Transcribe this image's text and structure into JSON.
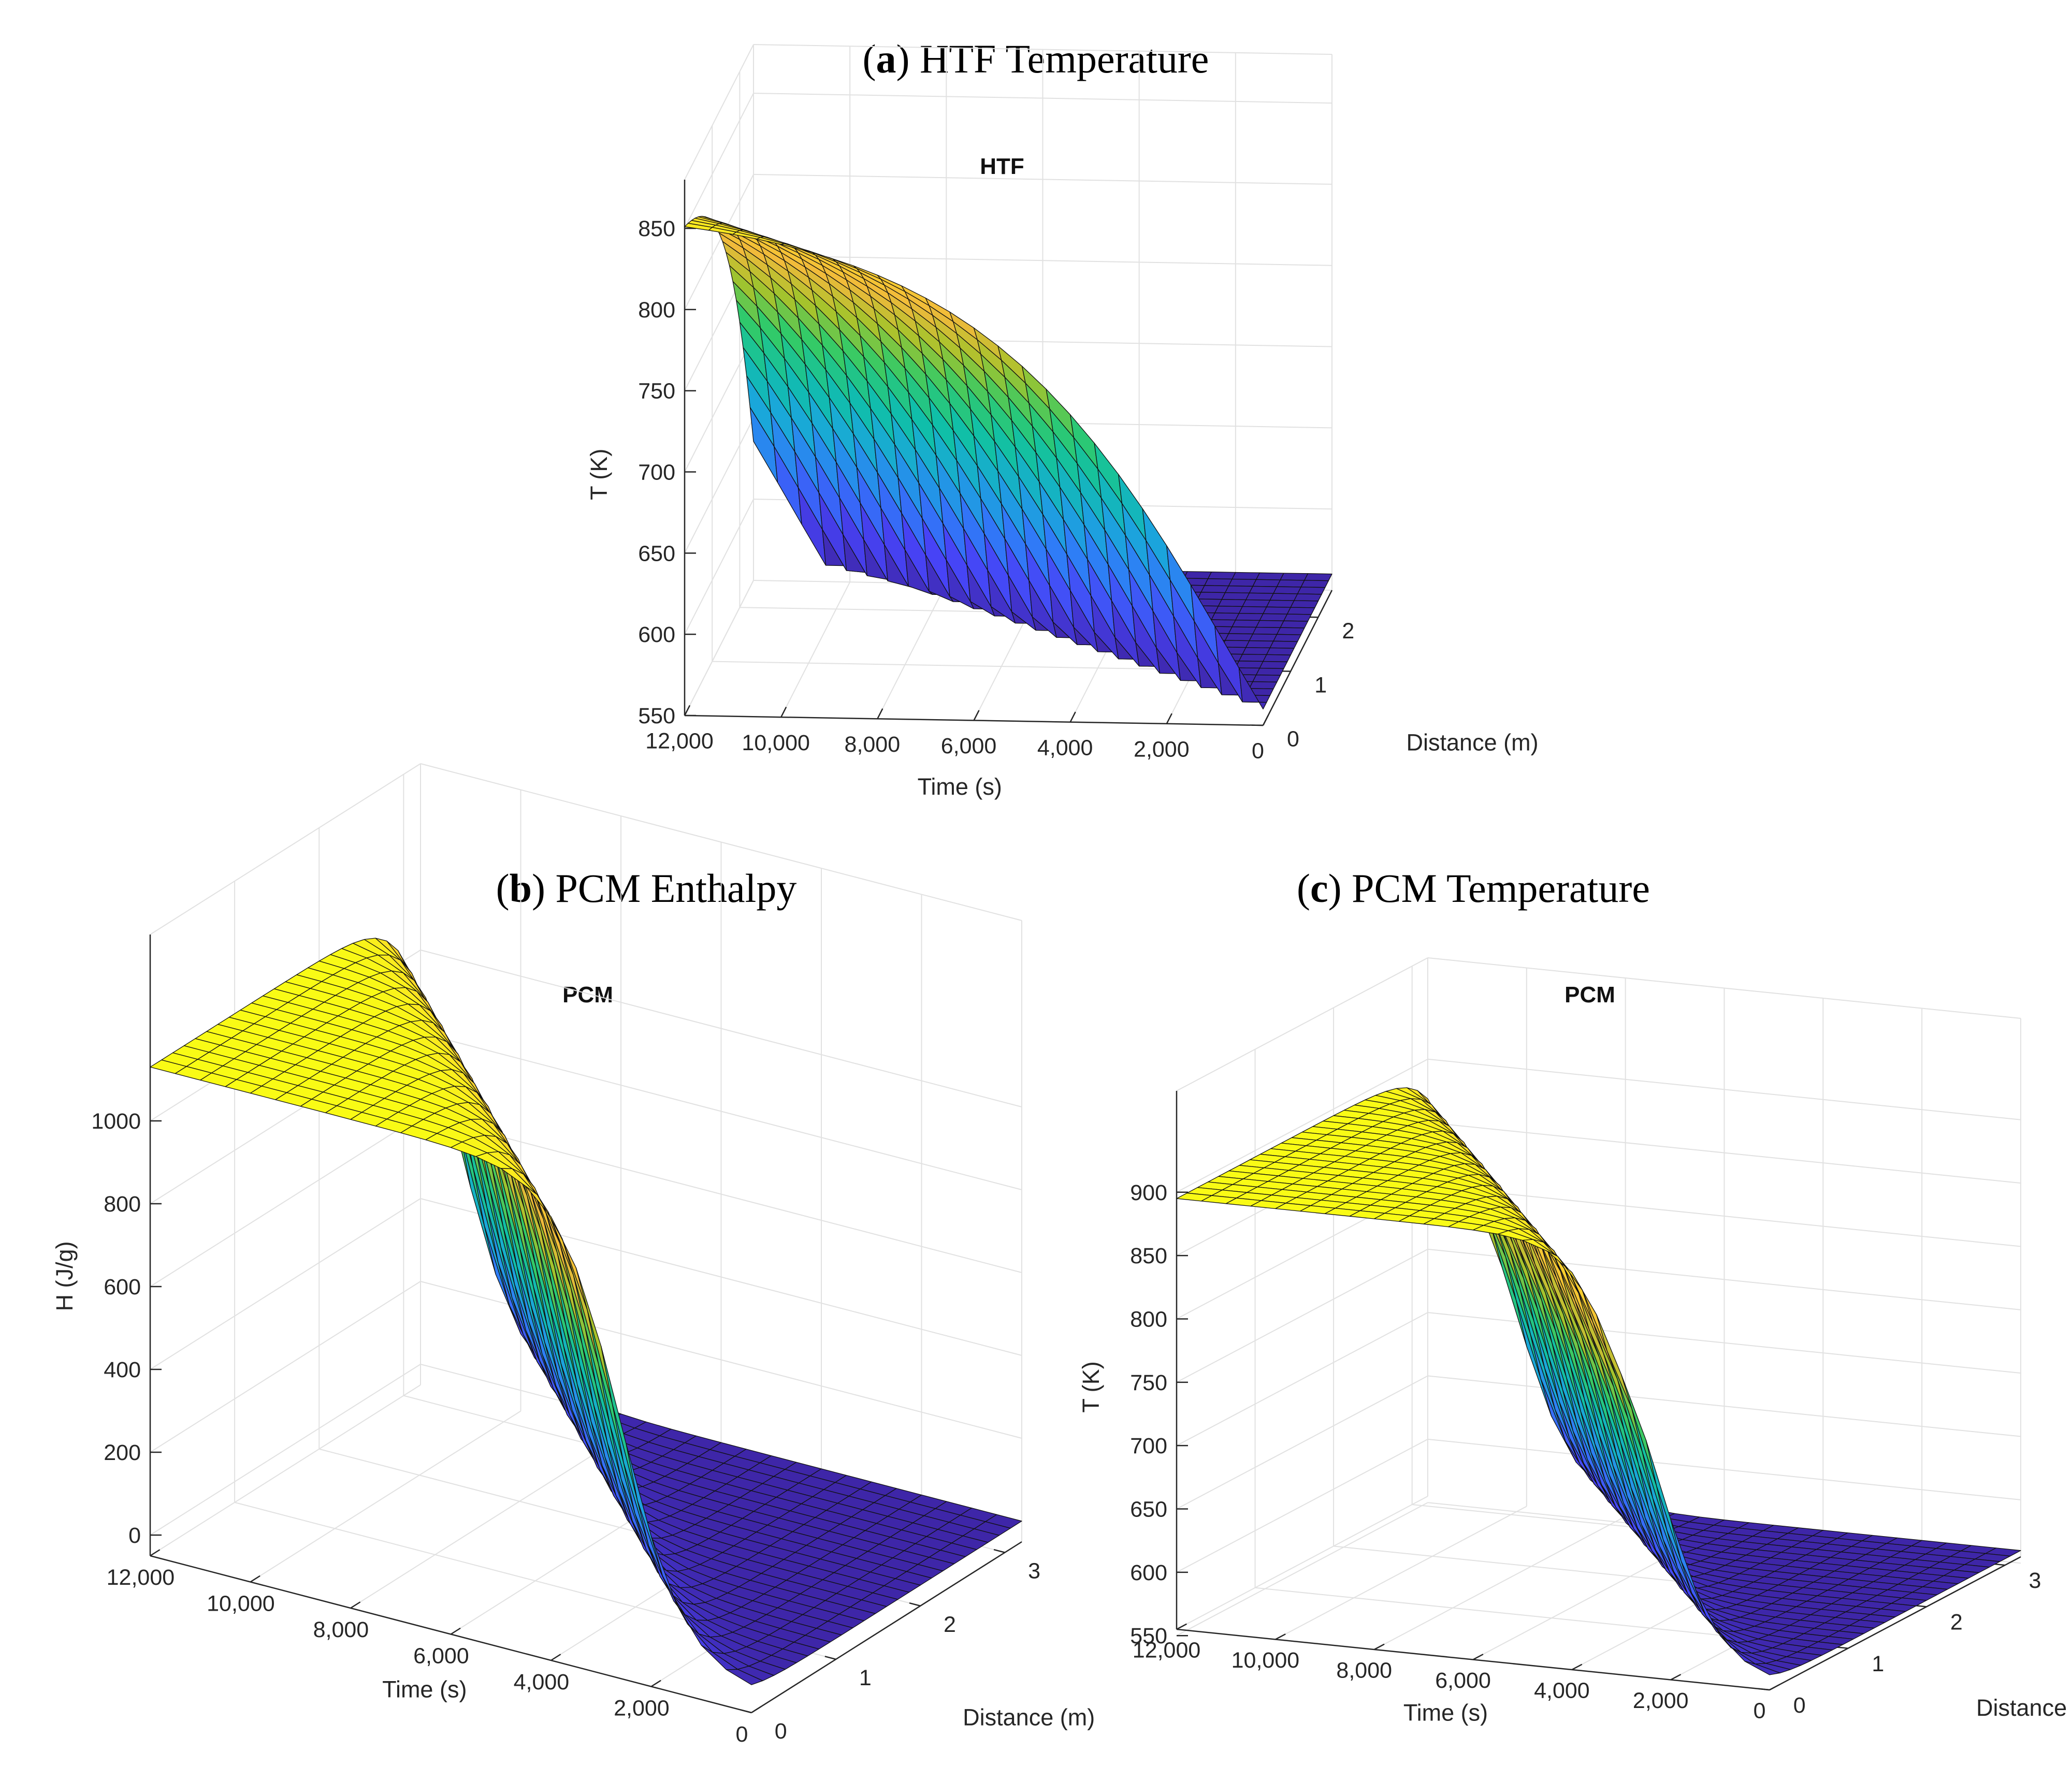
{
  "captions": [
    {
      "letter": "a",
      "text": "HTF Temperature"
    },
    {
      "letter": "b",
      "text": "PCM Enthalpy"
    },
    {
      "letter": "c",
      "text": "PCM Temperature"
    }
  ],
  "colormap": [
    "#3e26a8",
    "#4743f6",
    "#2f7cf7",
    "#1aa7da",
    "#10bfa8",
    "#32ca68",
    "#a6c32c",
    "#f0b93b",
    "#fbd22c",
    "#f9fb15"
  ],
  "chart_data": [
    {
      "id": "a",
      "type": "surface",
      "title": "HTF",
      "xlabel": "Time (s)",
      "ylabel": "Distance (m)",
      "zlabel": "T (K)",
      "x_ticks": [
        "0",
        "2,000",
        "4,000",
        "6,000",
        "8,000",
        "10,000",
        "12,000"
      ],
      "y_ticks": [
        "0",
        "1",
        "2"
      ],
      "z_ticks": [
        "550",
        "600",
        "650",
        "700",
        "750",
        "800",
        "850"
      ],
      "xlim": [
        0,
        12000
      ],
      "ylim": [
        0,
        2.5
      ],
      "zlim": [
        550,
        880
      ],
      "model": {
        "z_min": 560,
        "z_max": 862,
        "delay_s_per_m": 4200,
        "tau_s": 2600,
        "tail": 0.58,
        "inlet_ramp_s": 300
      },
      "mesh": {
        "nx": 24,
        "ny": 20
      }
    },
    {
      "id": "b",
      "type": "surface",
      "title": "PCM",
      "xlabel": "Time (s)",
      "ylabel": "Distance (m)",
      "zlabel": "H (J/g)",
      "x_ticks": [
        "0",
        "2,000",
        "4,000",
        "6,000",
        "8,000",
        "10,000",
        "12,000"
      ],
      "y_ticks": [
        "0",
        "1",
        "2",
        "3"
      ],
      "z_ticks": [
        "0",
        "200",
        "400",
        "600",
        "800",
        "1000"
      ],
      "xlim": [
        0,
        12000
      ],
      "ylim": [
        0,
        3.2
      ],
      "zlim": [
        -50,
        1450
      ],
      "model": {
        "z_min": 0,
        "z_max": 1130,
        "center_s": 2600,
        "center_slope_s_per_m": 2700,
        "width_s": 1500
      },
      "mesh": {
        "nx": 24,
        "ny": 24
      }
    },
    {
      "id": "c",
      "type": "surface",
      "title": "PCM",
      "xlabel": "Time (s)",
      "ylabel": "Distance (m)",
      "zlabel": "T (K)",
      "x_ticks": [
        "0",
        "2,000",
        "4,000",
        "6,000",
        "8,000",
        "10,000",
        "12,000"
      ],
      "y_ticks": [
        "0",
        "1",
        "2",
        "3"
      ],
      "z_ticks": [
        "550",
        "600",
        "650",
        "700",
        "750",
        "800",
        "850",
        "900"
      ],
      "xlim": [
        0,
        12000
      ],
      "ylim": [
        0,
        3.2
      ],
      "zlim": [
        555,
        980
      ],
      "model": {
        "z_min": 560,
        "z_max": 895,
        "plateau": 808,
        "center_s": 2200,
        "center_slope_s_per_m": 2500,
        "width_s": 1300
      },
      "mesh": {
        "nx": 24,
        "ny": 24
      }
    }
  ]
}
